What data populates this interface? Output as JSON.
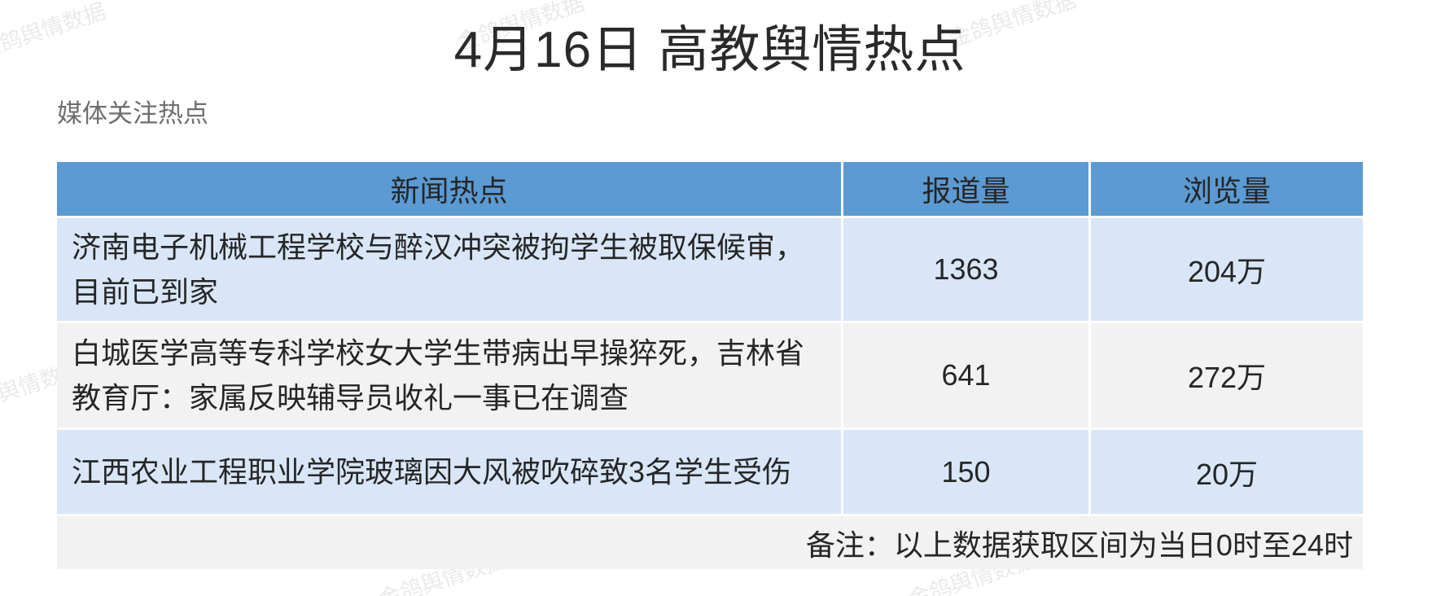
{
  "watermark": {
    "text": "金鸽舆情数据"
  },
  "header": {
    "title": "4月16日 高教舆情热点"
  },
  "section": {
    "label": "媒体关注热点"
  },
  "table": {
    "columns": [
      "新闻热点",
      "报道量",
      "浏览量"
    ],
    "rows": [
      {
        "topic": "济南电子机械工程学校与醉汉冲突被拘学生被取保候审，目前已到家",
        "reports": "1363",
        "views": "204万"
      },
      {
        "topic": "白城医学高等专科学校女大学生带病出早操猝死，吉林省教育厅：家属反映辅导员收礼一事已在调查",
        "reports": "641",
        "views": "272万"
      },
      {
        "topic": "江西农业工程职业学院玻璃因大风被吹碎致3名学生受伤",
        "reports": "150",
        "views": "20万"
      }
    ],
    "footnote": "备注：以上数据获取区间为当日0时至24时"
  },
  "colors": {
    "header_blue": "#5b9ad3",
    "row_blue": "#d8e6f7",
    "row_gray": "#f2f2f2",
    "watermark_gray": "#eaeaea"
  }
}
